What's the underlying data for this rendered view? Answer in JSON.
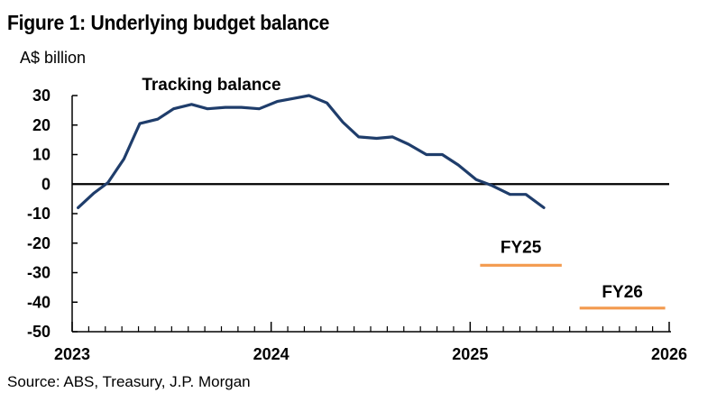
{
  "header": {
    "title": "Figure 1: Underlying budget balance",
    "units": "A$ billion"
  },
  "footer": {
    "source": "Source: ABS, Treasury, J.P. Morgan"
  },
  "colors": {
    "tracking_line": "#1f3d6b",
    "forecast_line": "#f39a4e",
    "zero_line": "#000000"
  },
  "chart_data": {
    "type": "line",
    "title": "Figure 1: Underlying budget balance",
    "ylabel": "A$ billion",
    "xlabel": "",
    "ylim": [
      -50,
      30
    ],
    "xlim": [
      2023.0,
      2026.0
    ],
    "yticks": [
      30,
      20,
      10,
      0,
      -10,
      -20,
      -30,
      -40,
      -50
    ],
    "yticklabels": [
      "30",
      "20",
      "10",
      "0",
      "-10",
      "-20",
      "-30",
      "-40",
      "-50"
    ],
    "xticks": [
      2023,
      2024,
      2025,
      2026
    ],
    "xticklabels": [
      "2023",
      "2024",
      "2025",
      "2026"
    ],
    "grid": false,
    "series": [
      {
        "name": "Tracking balance",
        "label": "Tracking balance",
        "x": [
          2023.03,
          2023.11,
          2023.18,
          2023.26,
          2023.34,
          2023.43,
          2023.51,
          2023.6,
          2023.68,
          2023.77,
          2023.85,
          2023.94,
          2024.03,
          2024.11,
          2024.19,
          2024.28,
          2024.36,
          2024.44,
          2024.53,
          2024.61,
          2024.69,
          2024.78,
          2024.86,
          2024.94,
          2025.03,
          2025.11,
          2025.2,
          2025.28,
          2025.37
        ],
        "values": [
          -8,
          -3,
          0.5,
          8.5,
          20.5,
          22,
          25.5,
          27,
          25.5,
          26,
          26,
          25.5,
          28,
          29,
          30,
          27.5,
          21,
          16,
          15.5,
          16,
          13.5,
          10,
          10,
          6.5,
          1.5,
          -0.5,
          -3.5,
          -3.5,
          -8
        ]
      },
      {
        "name": "FY25",
        "label": "FY25",
        "x": [
          2025.05,
          2025.46
        ],
        "values": [
          -27.5,
          -27.5
        ]
      },
      {
        "name": "FY26",
        "label": "FY26",
        "x": [
          2025.55,
          2025.98
        ],
        "values": [
          -42,
          -42
        ]
      }
    ]
  }
}
